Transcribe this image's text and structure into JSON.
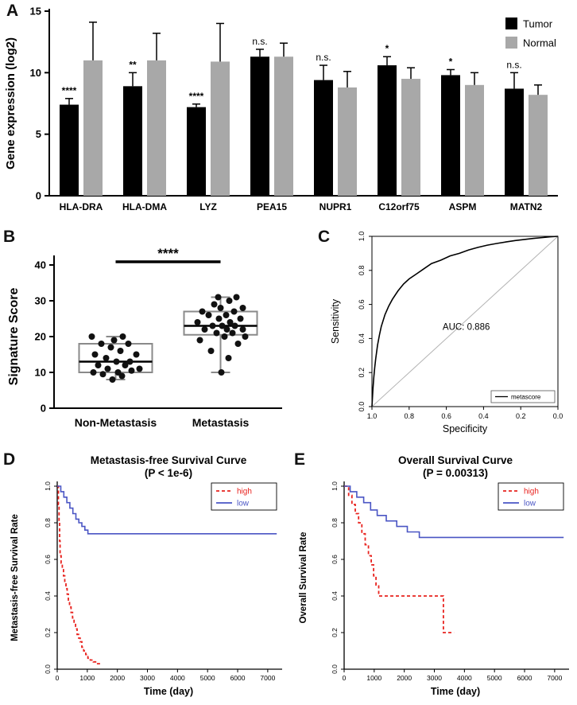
{
  "panels": {
    "a": {
      "label": "A"
    },
    "b": {
      "label": "B"
    },
    "c": {
      "label": "C"
    },
    "d": {
      "label": "D"
    },
    "e": {
      "label": "E"
    }
  },
  "chart_data": [
    {
      "id": "gene-expression-bars",
      "type": "bar",
      "ylabel": "Gene expression (log2)",
      "ylim": [
        0,
        15
      ],
      "yticks": [
        0,
        5,
        10,
        15
      ],
      "categories": [
        "HLA-DRA",
        "HLA-DMA",
        "LYZ",
        "PEA15",
        "NUPR1",
        "C12orf75",
        "ASPM",
        "MATN2"
      ],
      "series": [
        {
          "name": "Tumor",
          "color": "#000000",
          "values": [
            7.4,
            8.9,
            7.2,
            11.3,
            9.4,
            10.6,
            9.8,
            8.7
          ],
          "errors": [
            0.5,
            1.1,
            0.25,
            0.6,
            1.2,
            0.7,
            0.45,
            1.3
          ]
        },
        {
          "name": "Normal",
          "color": "#a8a8a8",
          "values": [
            11.0,
            11.0,
            10.9,
            11.3,
            8.8,
            9.5,
            9.0,
            8.2
          ],
          "errors": [
            3.1,
            2.2,
            3.1,
            1.1,
            1.3,
            0.9,
            1.0,
            0.8
          ]
        }
      ],
      "significance": [
        "****",
        "**",
        "****",
        "n.s.",
        "n.s.",
        "*",
        "*",
        "n.s."
      ],
      "legend_position": "top-right"
    },
    {
      "id": "signature-score-box",
      "type": "box-scatter",
      "ylabel": "Signature Score",
      "ylim": [
        0,
        40
      ],
      "yticks": [
        0,
        10,
        20,
        30,
        40
      ],
      "categories": [
        "Non-Metastasis",
        "Metastasis"
      ],
      "significance": "****",
      "boxes": [
        {
          "whisker_low": 8,
          "q1": 10,
          "median": 13,
          "q3": 18,
          "whisker_high": 20
        },
        {
          "whisker_low": 10,
          "q1": 20.5,
          "median": 23,
          "q3": 27,
          "whisker_high": 31
        }
      ],
      "points": [
        [
          [
            -4,
            8
          ],
          [
            8,
            9
          ],
          [
            -16,
            9.5
          ],
          [
            3,
            10
          ],
          [
            -28,
            10
          ],
          [
            20,
            10.5
          ],
          [
            -10,
            11
          ],
          [
            30,
            11
          ],
          [
            12,
            12
          ],
          [
            -22,
            12
          ],
          [
            1,
            13
          ],
          [
            18,
            13
          ],
          [
            -12,
            14
          ],
          [
            26,
            15
          ],
          [
            -26,
            15
          ],
          [
            6,
            16
          ],
          [
            -6,
            17
          ],
          [
            16,
            18
          ],
          [
            -18,
            18
          ],
          [
            -2,
            19
          ],
          [
            9,
            20
          ],
          [
            -30,
            20
          ]
        ],
        [
          [
            1,
            10
          ],
          [
            10,
            14
          ],
          [
            -12,
            16
          ],
          [
            22,
            18
          ],
          [
            -26,
            19
          ],
          [
            5,
            20
          ],
          [
            31,
            20
          ],
          [
            -5,
            21
          ],
          [
            15,
            21
          ],
          [
            -20,
            22
          ],
          [
            8,
            22
          ],
          [
            28,
            22
          ],
          [
            -10,
            23
          ],
          [
            2,
            23
          ],
          [
            18,
            23
          ],
          [
            -29,
            24
          ],
          [
            12,
            24
          ],
          [
            -2,
            25
          ],
          [
            25,
            25
          ],
          [
            -15,
            26
          ],
          [
            7,
            26
          ],
          [
            -23,
            27
          ],
          [
            17,
            27
          ],
          [
            0,
            28
          ],
          [
            28,
            28
          ],
          [
            -8,
            29
          ],
          [
            11,
            30
          ],
          [
            -3,
            31
          ],
          [
            20,
            31
          ]
        ]
      ]
    },
    {
      "id": "roc-curve",
      "type": "roc",
      "xlabel": "Specificity",
      "ylabel": "Sensitivity",
      "auc_label": "AUC: 0.886",
      "auc": 0.886,
      "legend": "metascore",
      "xticks": [
        "1.0",
        "0.8",
        "0.6",
        "0.4",
        "0.2",
        "0.0"
      ],
      "yticks": [
        "0.0",
        "0.2",
        "0.4",
        "0.6",
        "0.8",
        "1.0"
      ],
      "curve_spec_sens": [
        [
          1.0,
          0.0
        ],
        [
          0.995,
          0.1
        ],
        [
          0.99,
          0.17
        ],
        [
          0.985,
          0.23
        ],
        [
          0.98,
          0.28
        ],
        [
          0.97,
          0.36
        ],
        [
          0.96,
          0.42
        ],
        [
          0.95,
          0.47
        ],
        [
          0.93,
          0.54
        ],
        [
          0.91,
          0.59
        ],
        [
          0.89,
          0.63
        ],
        [
          0.86,
          0.68
        ],
        [
          0.83,
          0.72
        ],
        [
          0.8,
          0.75
        ],
        [
          0.76,
          0.78
        ],
        [
          0.72,
          0.81
        ],
        [
          0.68,
          0.84
        ],
        [
          0.63,
          0.86
        ],
        [
          0.58,
          0.885
        ],
        [
          0.53,
          0.9
        ],
        [
          0.48,
          0.92
        ],
        [
          0.43,
          0.935
        ],
        [
          0.38,
          0.948
        ],
        [
          0.33,
          0.958
        ],
        [
          0.28,
          0.967
        ],
        [
          0.23,
          0.975
        ],
        [
          0.18,
          0.982
        ],
        [
          0.13,
          0.988
        ],
        [
          0.08,
          0.993
        ],
        [
          0.04,
          0.997
        ],
        [
          0.0,
          1.0
        ]
      ]
    },
    {
      "id": "metastasis-free-survival",
      "type": "km",
      "title": "Metastasis-free Survival Curve",
      "subtitle": "(P < 1e-6)",
      "xlabel": "Time (day)",
      "ylabel": "Metastasis-free Survival Rate",
      "xlim": [
        0,
        7400
      ],
      "xticks": [
        0,
        1000,
        2000,
        3000,
        4000,
        5000,
        6000,
        7000
      ],
      "yticks": [
        "0.0",
        "0.2",
        "0.4",
        "0.6",
        "0.8",
        "1.0"
      ],
      "series": [
        {
          "name": "high",
          "color": "#e8231f",
          "style": "dashed",
          "steps": [
            [
              0,
              1.0
            ],
            [
              40,
              0.9
            ],
            [
              60,
              0.8
            ],
            [
              80,
              0.7
            ],
            [
              95,
              0.62
            ],
            [
              130,
              0.58
            ],
            [
              170,
              0.55
            ],
            [
              210,
              0.51
            ],
            [
              250,
              0.48
            ],
            [
              290,
              0.44
            ],
            [
              330,
              0.41
            ],
            [
              370,
              0.37
            ],
            [
              410,
              0.34
            ],
            [
              460,
              0.31
            ],
            [
              510,
              0.28
            ],
            [
              560,
              0.25
            ],
            [
              610,
              0.22
            ],
            [
              660,
              0.19
            ],
            [
              710,
              0.17
            ],
            [
              760,
              0.15
            ],
            [
              820,
              0.12
            ],
            [
              880,
              0.1
            ],
            [
              950,
              0.08
            ],
            [
              1020,
              0.06
            ],
            [
              1100,
              0.05
            ],
            [
              1200,
              0.04
            ],
            [
              1320,
              0.03
            ],
            [
              1450,
              0.03
            ]
          ]
        },
        {
          "name": "low",
          "color": "#4a55c4",
          "style": "solid",
          "steps": [
            [
              0,
              1.0
            ],
            [
              120,
              0.97
            ],
            [
              220,
              0.94
            ],
            [
              320,
              0.91
            ],
            [
              420,
              0.88
            ],
            [
              520,
              0.85
            ],
            [
              620,
              0.82
            ],
            [
              720,
              0.8
            ],
            [
              820,
              0.78
            ],
            [
              920,
              0.76
            ],
            [
              1020,
              0.74
            ],
            [
              7300,
              0.74
            ]
          ]
        }
      ]
    },
    {
      "id": "overall-survival",
      "type": "km",
      "title": "Overall Survival Curve",
      "subtitle": "(P = 0.00313)",
      "xlabel": "Time (day)",
      "ylabel": "Overall Survival Rate",
      "xlim": [
        0,
        7400
      ],
      "xticks": [
        0,
        1000,
        2000,
        3000,
        4000,
        5000,
        6000,
        7000
      ],
      "yticks": [
        "0.0",
        "0.2",
        "0.4",
        "0.6",
        "0.8",
        "1.0"
      ],
      "series": [
        {
          "name": "high",
          "color": "#e8231f",
          "style": "dashed",
          "steps": [
            [
              0,
              1.0
            ],
            [
              150,
              0.95
            ],
            [
              260,
              0.9
            ],
            [
              370,
              0.85
            ],
            [
              480,
              0.8
            ],
            [
              590,
              0.74
            ],
            [
              700,
              0.68
            ],
            [
              810,
              0.62
            ],
            [
              900,
              0.57
            ],
            [
              980,
              0.51
            ],
            [
              1060,
              0.46
            ],
            [
              1150,
              0.4
            ],
            [
              3250,
              0.4
            ],
            [
              3300,
              0.2
            ],
            [
              3650,
              0.2
            ]
          ]
        },
        {
          "name": "low",
          "color": "#4a55c4",
          "style": "solid",
          "steps": [
            [
              0,
              1.0
            ],
            [
              200,
              0.97
            ],
            [
              420,
              0.94
            ],
            [
              650,
              0.91
            ],
            [
              880,
              0.87
            ],
            [
              1100,
              0.84
            ],
            [
              1400,
              0.81
            ],
            [
              1750,
              0.78
            ],
            [
              2100,
              0.75
            ],
            [
              2500,
              0.72
            ],
            [
              7300,
              0.72
            ]
          ]
        }
      ]
    }
  ]
}
